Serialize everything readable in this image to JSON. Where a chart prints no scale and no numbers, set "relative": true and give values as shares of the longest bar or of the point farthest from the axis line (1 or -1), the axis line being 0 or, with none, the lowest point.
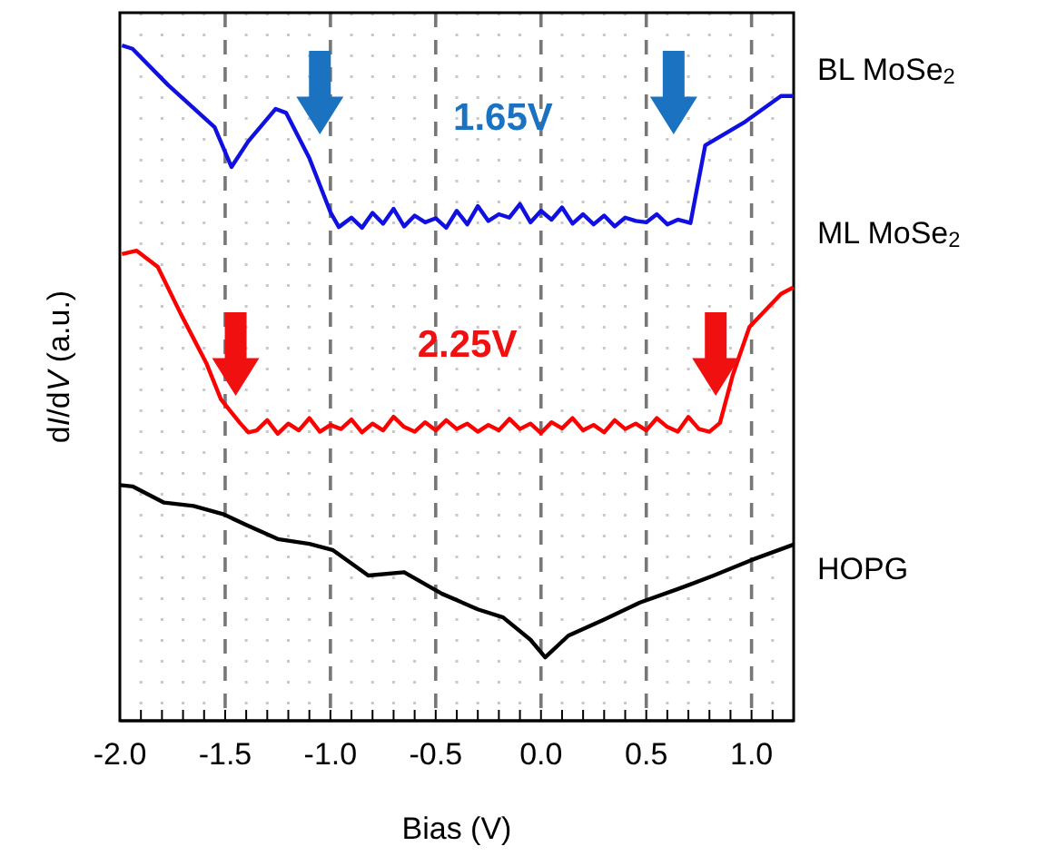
{
  "chart_data": {
    "type": "line",
    "relative": true,
    "xlabel": "Bias (V)",
    "ylabel": "dI/dV (a.u.)",
    "xlim": [
      -2.0,
      1.2
    ],
    "xticks": [
      {
        "value": -2,
        "label": "-2.0"
      },
      {
        "value": -1.9,
        "label": null
      },
      {
        "value": -1.8,
        "label": null
      },
      {
        "value": -1.7,
        "label": null
      },
      {
        "value": -1.6,
        "label": null
      },
      {
        "value": -1.5,
        "label": "-1.5"
      },
      {
        "value": -1.4,
        "label": null
      },
      {
        "value": -1.3,
        "label": null
      },
      {
        "value": -1.2,
        "label": null
      },
      {
        "value": -1.1,
        "label": null
      },
      {
        "value": -1,
        "label": "-1.0"
      },
      {
        "value": -0.9,
        "label": null
      },
      {
        "value": -0.8,
        "label": null
      },
      {
        "value": -0.7,
        "label": null
      },
      {
        "value": -0.6,
        "label": null
      },
      {
        "value": -0.5,
        "label": "-0.5"
      },
      {
        "value": -0.4,
        "label": null
      },
      {
        "value": -0.3,
        "label": null
      },
      {
        "value": -0.2,
        "label": null
      },
      {
        "value": -0.1,
        "label": null
      },
      {
        "value": 0,
        "label": "0.0"
      },
      {
        "value": 0.1,
        "label": null
      },
      {
        "value": 0.2,
        "label": null
      },
      {
        "value": 0.3,
        "label": null
      },
      {
        "value": 0.4,
        "label": null
      },
      {
        "value": 0.5,
        "label": "0.5"
      },
      {
        "value": 0.6,
        "label": null
      },
      {
        "value": 0.7,
        "label": null
      },
      {
        "value": 0.8,
        "label": null
      },
      {
        "value": 0.9,
        "label": null
      },
      {
        "value": 1,
        "label": "1.0"
      },
      {
        "value": 1.1,
        "label": null
      }
    ],
    "grid": "x",
    "tick_labels": "x",
    "annotations": [
      "1.65V",
      "2.25V"
    ],
    "series": [
      {
        "name": "BL MoSe$_{2}$",
        "color": "#1010e0",
        "x": [
          -1.99,
          -1.94,
          -1.77,
          -1.55,
          -1.47,
          -1.39,
          -1.26,
          -1.21,
          -1.1,
          -1.0,
          -0.96,
          -0.9,
          -0.85,
          -0.8,
          -0.75,
          -0.7,
          -0.65,
          -0.6,
          -0.55,
          -0.5,
          -0.45,
          -0.4,
          -0.35,
          -0.3,
          -0.25,
          -0.2,
          -0.15,
          -0.1,
          -0.05,
          0,
          0.05,
          0.1,
          0.15,
          0.2,
          0.25,
          0.3,
          0.35,
          0.4,
          0.45,
          0.5,
          0.55,
          0.6,
          0.65,
          0.71,
          0.78,
          0.97,
          1.14,
          1.2
        ],
        "values": [
          1.0,
          0.995,
          0.941,
          0.879,
          0.82,
          0.858,
          0.906,
          0.9,
          0.833,
          0.753,
          0.731,
          0.745,
          0.73,
          0.752,
          0.736,
          0.758,
          0.732,
          0.748,
          0.738,
          0.744,
          0.73,
          0.755,
          0.735,
          0.762,
          0.74,
          0.75,
          0.745,
          0.765,
          0.738,
          0.755,
          0.742,
          0.76,
          0.736,
          0.75,
          0.735,
          0.748,
          0.732,
          0.745,
          0.74,
          0.738,
          0.75,
          0.735,
          0.742,
          0.737,
          0.852,
          0.887,
          0.925,
          0.925
        ]
      },
      {
        "name": "ML MoSe$_{2}$",
        "color": "#ff0000",
        "x": [
          -1.99,
          -1.92,
          -1.82,
          -1.71,
          -1.59,
          -1.52,
          -1.43,
          -1.39,
          -1.35,
          -1.3,
          -1.25,
          -1.2,
          -1.15,
          -1.1,
          -1.05,
          -1.0,
          -0.95,
          -0.9,
          -0.85,
          -0.8,
          -0.75,
          -0.7,
          -0.65,
          -0.6,
          -0.55,
          -0.5,
          -0.45,
          -0.4,
          -0.35,
          -0.3,
          -0.25,
          -0.2,
          -0.15,
          -0.1,
          -0.05,
          0,
          0.05,
          0.1,
          0.15,
          0.2,
          0.25,
          0.3,
          0.35,
          0.4,
          0.45,
          0.5,
          0.55,
          0.6,
          0.65,
          0.7,
          0.75,
          0.8,
          0.85,
          0.91,
          0.99,
          1.14,
          1.2
        ],
        "values": [
          0.691,
          0.696,
          0.672,
          0.602,
          0.53,
          0.476,
          0.441,
          0.427,
          0.43,
          0.445,
          0.425,
          0.44,
          0.43,
          0.448,
          0.428,
          0.438,
          0.432,
          0.446,
          0.427,
          0.44,
          0.43,
          0.45,
          0.435,
          0.428,
          0.442,
          0.43,
          0.445,
          0.432,
          0.44,
          0.428,
          0.438,
          0.43,
          0.447,
          0.432,
          0.44,
          0.426,
          0.442,
          0.433,
          0.448,
          0.43,
          0.438,
          0.427,
          0.445,
          0.432,
          0.44,
          0.43,
          0.448,
          0.435,
          0.428,
          0.45,
          0.432,
          0.428,
          0.441,
          0.511,
          0.583,
          0.632,
          0.642
        ]
      },
      {
        "name": "HOPG",
        "color": "#000000",
        "x": [
          -2.0,
          -1.94,
          -1.79,
          -1.65,
          -1.51,
          -1.4,
          -1.25,
          -1.1,
          -0.99,
          -0.82,
          -0.65,
          -0.47,
          -0.3,
          -0.18,
          -0.05,
          0.02,
          0.13,
          0.3,
          0.47,
          0.65,
          0.82,
          1.0,
          1.2
        ],
        "values": [
          0.349,
          0.347,
          0.323,
          0.318,
          0.306,
          0.29,
          0.269,
          0.262,
          0.253,
          0.215,
          0.22,
          0.188,
          0.165,
          0.153,
          0.12,
          0.094,
          0.126,
          0.15,
          0.175,
          0.195,
          0.215,
          0.238,
          0.261
        ]
      }
    ]
  }
}
